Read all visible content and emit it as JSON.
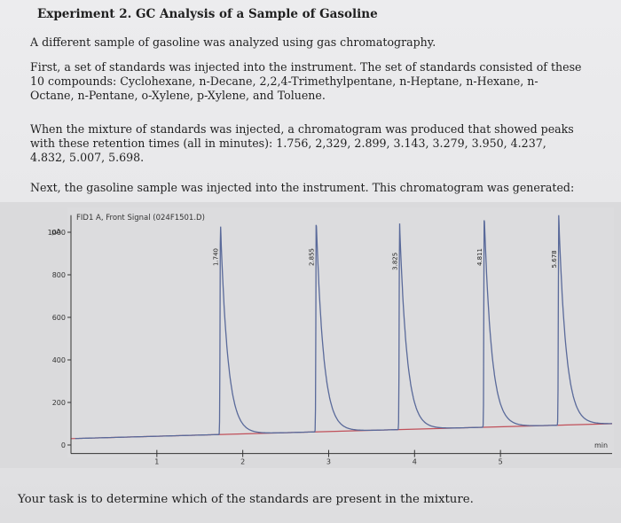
{
  "document": {
    "title": "Experiment 2. GC Analysis of a Sample of Gasoline",
    "para1": "A different sample of gasoline was analyzed using gas chromatography.",
    "para2_lines": [
      "First, a set of standards was injected into the instrument. The set of standards consisted of these",
      "10 compounds: Cyclohexane, n-Decane, 2,2,4-Trimethylpentane, n-Heptane, n-Hexane, n-",
      "Octane, n-Pentane, o-Xylene, p-Xylene, and Toluene."
    ],
    "para3_lines": [
      "When the mixture of standards was injected, a chromatogram was produced that showed peaks",
      "with these retention times (all in minutes): 1.756,  2,329, 2.899, 3.143, 3.279, 3.950, 4.237,",
      "4.832, 5.007, 5.698."
    ],
    "para4": "Next, the gasoline sample was injected into the instrument. This chromatogram was generated:",
    "task": "Your task is to determine which of the standards are present in the mixture."
  },
  "chart_data": {
    "type": "line",
    "signal_label": "FID1 A, Front Signal (024F1501.D)",
    "ylabel": "pA",
    "xlabel": "min",
    "xlim": [
      0,
      6.3
    ],
    "ylim": [
      -50,
      1100
    ],
    "yticks": [
      0,
      200,
      400,
      600,
      800,
      1000
    ],
    "xticks": [
      1,
      2,
      3,
      4,
      5
    ],
    "baseline": {
      "start": 30,
      "end": 100
    },
    "peaks": [
      {
        "label": "1.740",
        "rt": 1.74,
        "height": 1000
      },
      {
        "label": "2.855",
        "rt": 2.855,
        "height": 1000
      },
      {
        "label": "3.825",
        "rt": 3.825,
        "height": 980
      },
      {
        "label": "4.811",
        "rt": 4.811,
        "height": 1000
      },
      {
        "label": "5.678",
        "rt": 5.678,
        "height": 990
      }
    ],
    "colors": {
      "signal": "#5a6a9a",
      "baseline": "#c0505a",
      "axis": "#333333"
    }
  }
}
